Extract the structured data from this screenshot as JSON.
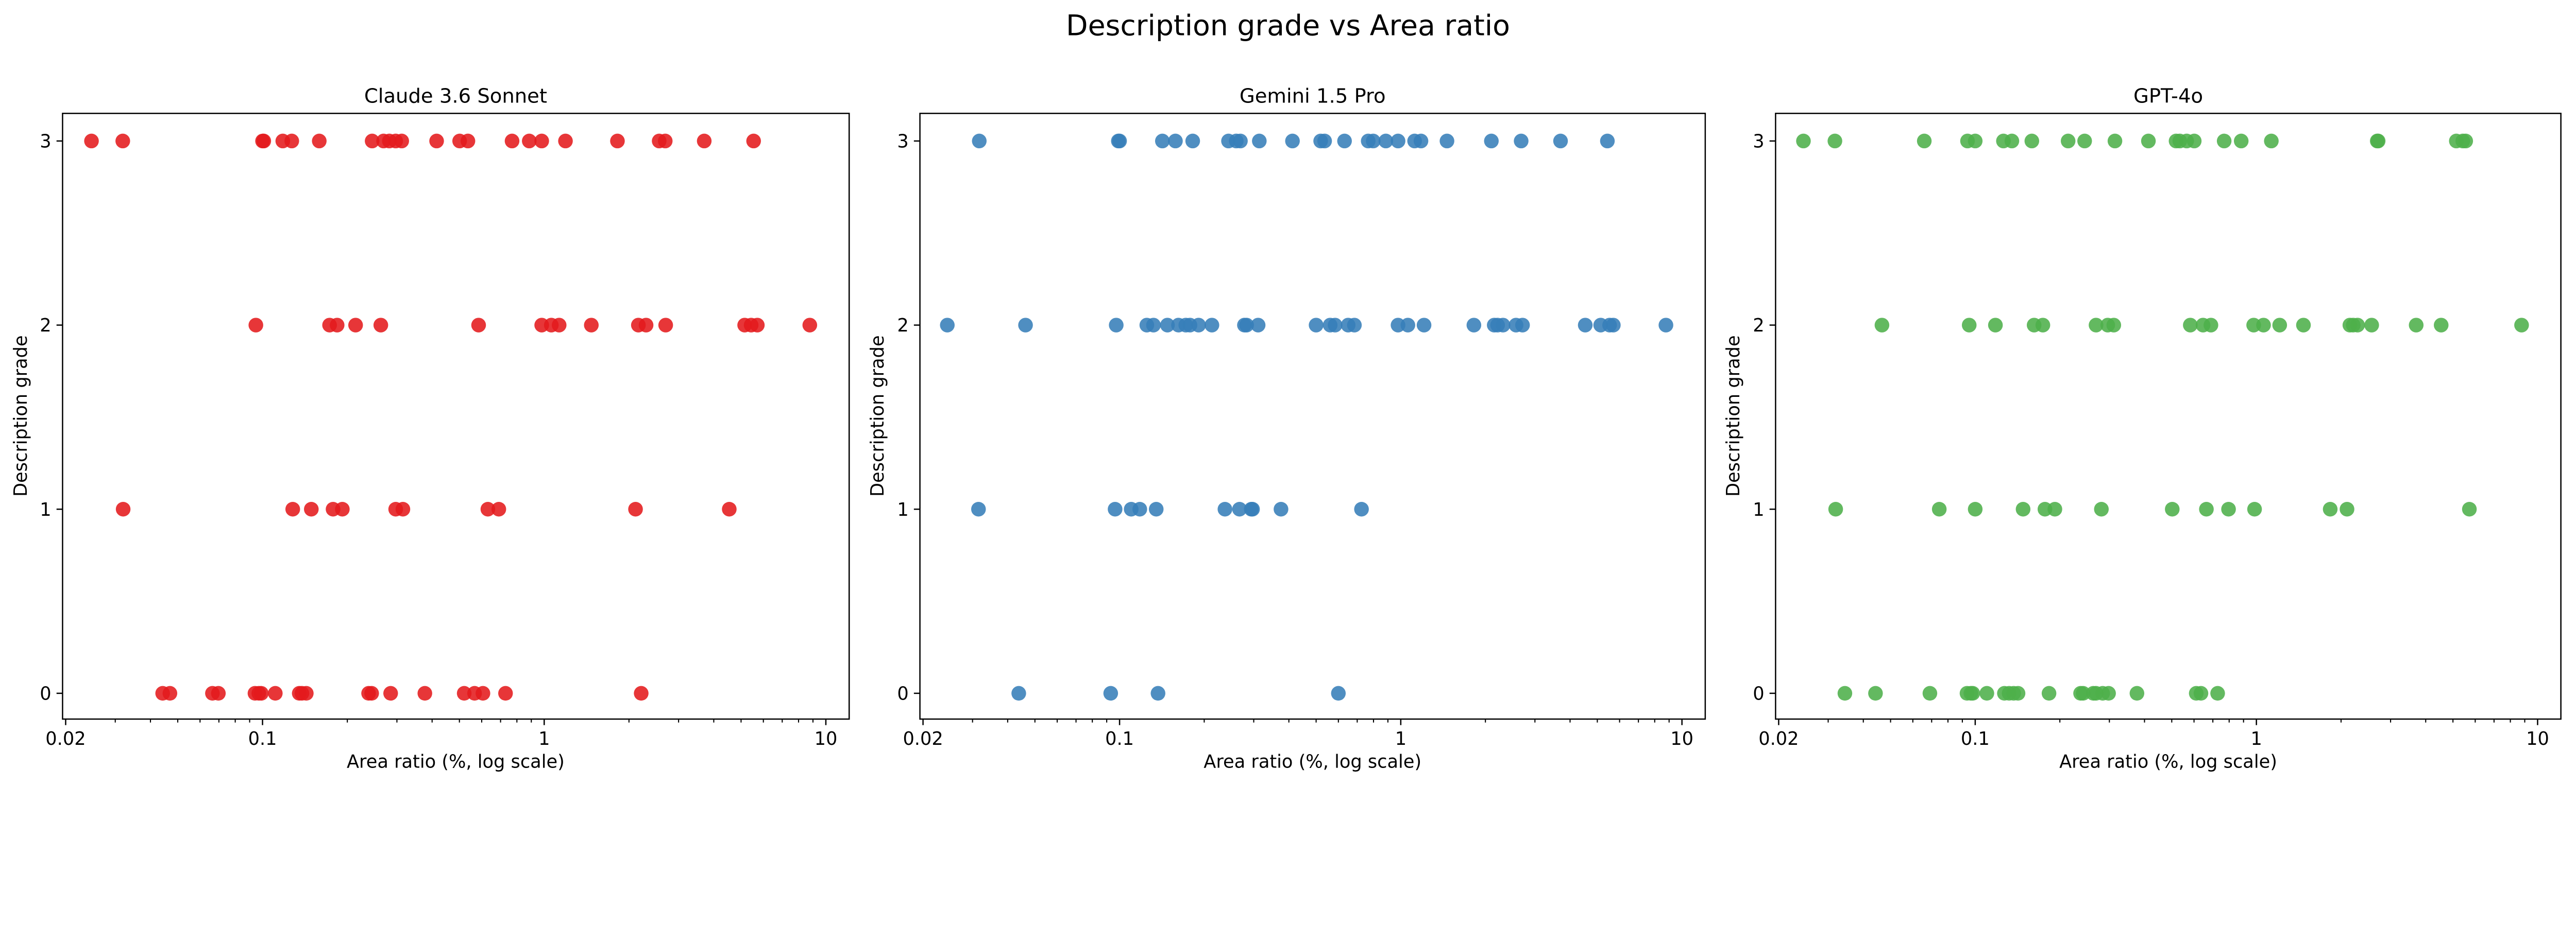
{
  "chart_data": {
    "title": "Description grade vs Area ratio",
    "panels": [
      {
        "type": "scatter",
        "title": "Claude 3.6 Sonnet",
        "color": "#e41a1c",
        "xlabel": "Area ratio (%, log scale)",
        "ylabel": "Description grade",
        "xscale": "log",
        "xlim": [
          0.0195,
          12.1
        ],
        "ylim": [
          -0.14,
          3.15
        ],
        "xticks": [
          0.02,
          0.1,
          1,
          10
        ],
        "xtick_labels": [
          "0.02",
          "0.1",
          "1",
          "10"
        ],
        "yticks": [
          0,
          1,
          2,
          3
        ],
        "ytick_labels": [
          "0",
          "1",
          "2",
          "3"
        ],
        "points_by_grade": {
          "3": [
            0.0247,
            0.0319,
            0.1,
            0.101,
            0.118,
            0.127,
            0.159,
            0.245,
            0.269,
            0.282,
            0.297,
            0.312,
            0.415,
            0.501,
            0.536,
            0.769,
            0.885,
            0.98,
            1.19,
            1.82,
            2.56,
            2.69,
            3.7,
            5.54
          ],
          "2": [
            0.0947,
            0.173,
            0.184,
            0.214,
            0.263,
            0.585,
            0.98,
            1.06,
            1.13,
            1.47,
            2.16,
            2.3,
            2.7,
            5.15,
            5.43,
            5.71,
            8.77
          ],
          "1": [
            0.032,
            0.128,
            0.149,
            0.178,
            0.192,
            0.297,
            0.315,
            0.631,
            0.69,
            2.11,
            4.54
          ],
          "0": [
            0.0442,
            0.0469,
            0.0664,
            0.0697,
            0.094,
            0.097,
            0.099,
            0.111,
            0.135,
            0.138,
            0.143,
            0.238,
            0.244,
            0.285,
            0.377,
            0.52,
            0.566,
            0.606,
            0.729,
            2.21
          ]
        }
      },
      {
        "type": "scatter",
        "title": "Gemini 1.5 Pro",
        "color": "#377eb8",
        "xlabel": "Area ratio (%, log scale)",
        "ylabel": "Description grade",
        "xscale": "log",
        "xlim": [
          0.0195,
          12.1
        ],
        "ylim": [
          -0.14,
          3.15
        ],
        "xticks": [
          0.02,
          0.1,
          1,
          10
        ],
        "xtick_labels": [
          "0.02",
          "0.1",
          "1",
          "10"
        ],
        "yticks": [
          0,
          1,
          2,
          3
        ],
        "ytick_labels": [
          "0",
          "1",
          "2",
          "3"
        ],
        "points_by_grade": {
          "3": [
            0.0317,
            0.099,
            0.1,
            0.142,
            0.158,
            0.182,
            0.244,
            0.26,
            0.269,
            0.314,
            0.412,
            0.519,
            0.536,
            0.631,
            0.766,
            0.798,
            0.885,
            0.978,
            1.12,
            1.18,
            1.46,
            2.1,
            2.68,
            3.7,
            5.43
          ],
          "2": [
            0.0244,
            0.0463,
            0.0973,
            0.125,
            0.132,
            0.148,
            0.162,
            0.172,
            0.178,
            0.191,
            0.213,
            0.278,
            0.283,
            0.311,
            0.5,
            0.561,
            0.584,
            0.65,
            0.684,
            0.978,
            1.06,
            1.21,
            1.82,
            2.15,
            2.21,
            2.31,
            2.57,
            2.71,
            4.53,
            5.14,
            5.53,
            5.7,
            8.77
          ],
          "1": [
            0.0315,
            0.0964,
            0.11,
            0.118,
            0.135,
            0.237,
            0.267,
            0.294,
            0.297,
            0.375,
            0.725
          ],
          "0": [
            0.0438,
            0.093,
            0.137,
            0.6
          ]
        }
      },
      {
        "type": "scatter",
        "title": "GPT-4o",
        "color": "#4daf4a",
        "xlabel": "Area ratio (%, log scale)",
        "ylabel": "Description grade",
        "xscale": "log",
        "xlim": [
          0.0195,
          12.1
        ],
        "ylim": [
          -0.14,
          3.15
        ],
        "xticks": [
          0.02,
          0.1,
          1,
          10
        ],
        "xtick_labels": [
          "0.02",
          "0.1",
          "1",
          "10"
        ],
        "yticks": [
          0,
          1,
          2,
          3
        ],
        "ytick_labels": [
          "0",
          "1",
          "2",
          "3"
        ],
        "points_by_grade": {
          "3": [
            0.0245,
            0.0317,
            0.0659,
            0.0939,
            0.1,
            0.126,
            0.135,
            0.159,
            0.214,
            0.245,
            0.314,
            0.413,
            0.518,
            0.534,
            0.565,
            0.601,
            0.768,
            0.883,
            1.13,
            2.69,
            2.71,
            5.14,
            5.42,
            5.55
          ],
          "2": [
            0.0466,
            0.0952,
            0.118,
            0.162,
            0.174,
            0.269,
            0.296,
            0.311,
            0.582,
            0.646,
            0.689,
            0.978,
            1.06,
            1.21,
            1.47,
            2.15,
            2.21,
            2.29,
            2.57,
            3.7,
            4.54,
            8.77
          ],
          "1": [
            0.0319,
            0.0745,
            0.1,
            0.148,
            0.177,
            0.192,
            0.281,
            0.502,
            0.664,
            0.796,
            0.985,
            1.83,
            2.1,
            5.72
          ],
          "0": [
            0.0344,
            0.0442,
            0.069,
            0.0935,
            0.0965,
            0.098,
            0.11,
            0.127,
            0.132,
            0.137,
            0.142,
            0.183,
            0.237,
            0.242,
            0.263,
            0.269,
            0.284,
            0.298,
            0.376,
            0.611,
            0.635,
            0.728
          ]
        }
      }
    ]
  }
}
